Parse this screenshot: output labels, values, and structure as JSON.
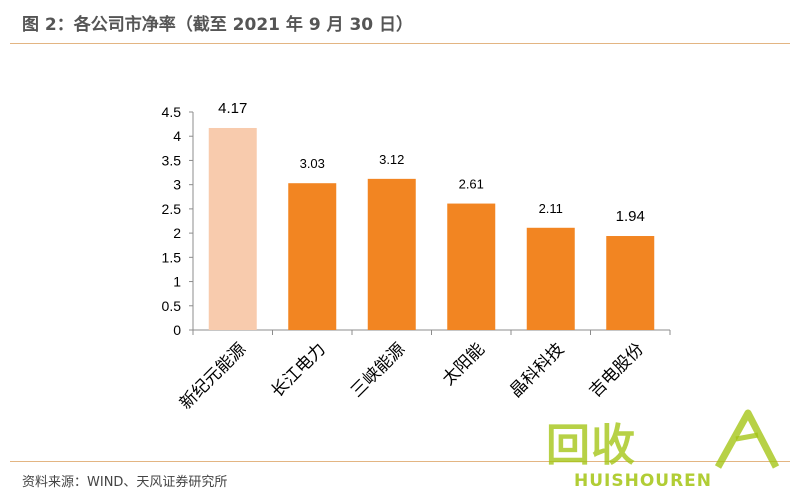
{
  "header": {
    "title": "图 2：各公司市净率（截至 2021 年 9 月 30 日）"
  },
  "footer": {
    "source": "资料来源：WIND、天风证券研究所"
  },
  "watermark": {
    "brand": "回收",
    "sub": "HUISHOUREN"
  },
  "colors": {
    "highlight_bar": "#f8cbad",
    "bar": "#f28522",
    "rule": "#e3b582"
  },
  "chart_data": {
    "type": "bar",
    "title": "",
    "xlabel": "",
    "ylabel": "",
    "categories": [
      "新纪元能源",
      "长江电力",
      "三峡能源",
      "太阳能",
      "晶科科技",
      "吉电股份"
    ],
    "values": [
      4.17,
      3.03,
      3.12,
      2.61,
      2.11,
      1.94
    ],
    "value_labels": [
      "4.17",
      "3.03",
      "3.12",
      "2.61",
      "2.11",
      "1.94"
    ],
    "highlight_index": 0,
    "ylim": [
      0,
      4.5
    ],
    "yticks": [
      0,
      0.5,
      1,
      1.5,
      2,
      2.5,
      3,
      3.5,
      4,
      4.5
    ],
    "ytick_labels": [
      "0",
      "0.5",
      "1",
      "1.5",
      "2",
      "2.5",
      "3",
      "3.5",
      "4",
      "4.5"
    ],
    "grid": false,
    "legend": "none"
  }
}
